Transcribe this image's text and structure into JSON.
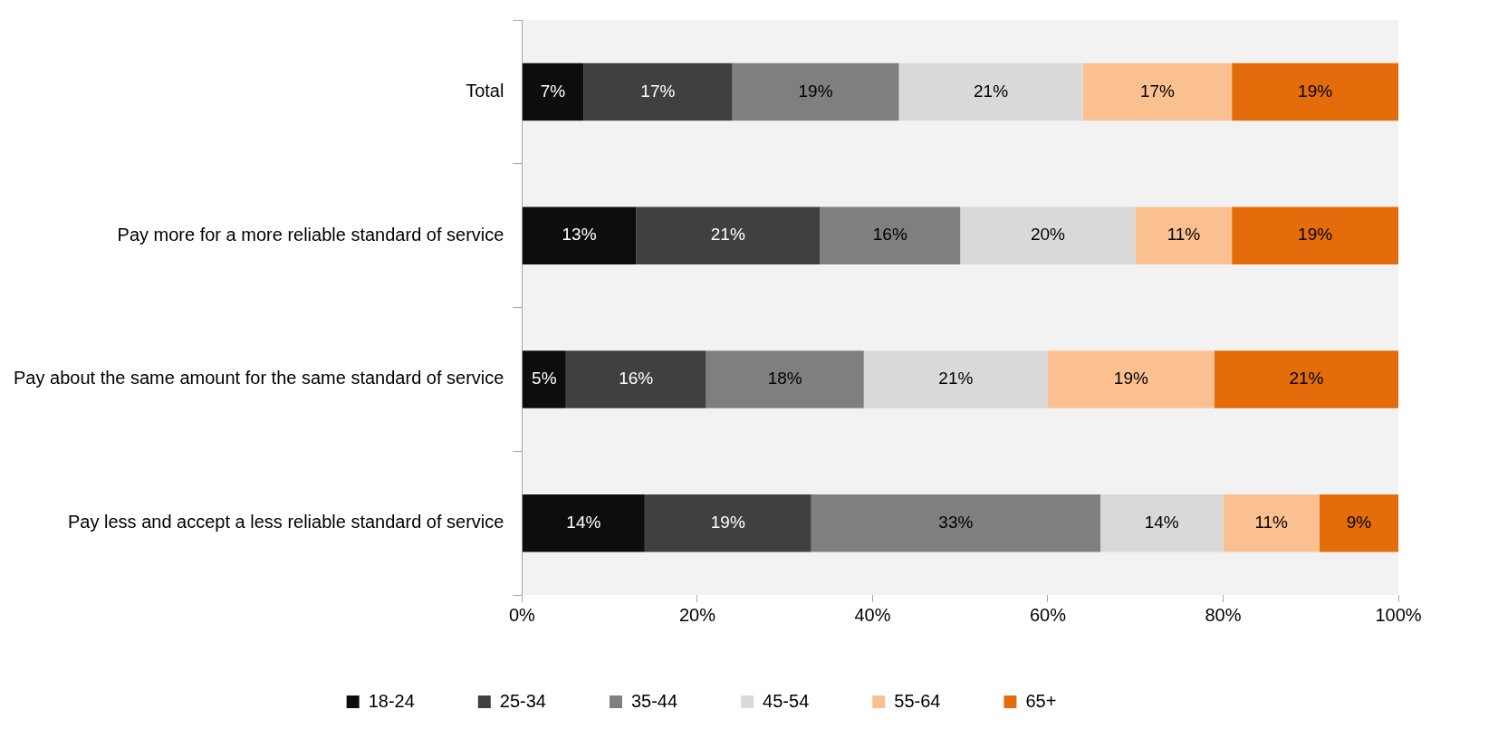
{
  "chart_data": {
    "type": "bar",
    "orientation": "horizontal",
    "stacked": true,
    "grid": false,
    "legend": "bottom",
    "categories": [
      "Total",
      "Pay more for a more reliable standard of service",
      "Pay about the same amount for the same standard of service",
      "Pay less and accept a less reliable standard of service"
    ],
    "xlim": [
      0,
      100
    ],
    "xticks": [
      {
        "value": 0,
        "label": "0%"
      },
      {
        "value": 20,
        "label": "20%"
      },
      {
        "value": 40,
        "label": "40%"
      },
      {
        "value": 60,
        "label": "60%"
      },
      {
        "value": 80,
        "label": "80%"
      },
      {
        "value": 100,
        "label": "100%"
      }
    ],
    "series": [
      {
        "name": "18-24",
        "color": "#0d0d0d",
        "values": [
          7,
          13,
          5,
          14
        ],
        "value_labels": [
          "7%",
          "13%",
          "5%",
          "14%"
        ]
      },
      {
        "name": "25-34",
        "color": "#404040",
        "values": [
          17,
          21,
          16,
          19
        ],
        "value_labels": [
          "17%",
          "21%",
          "16%",
          "19%"
        ]
      },
      {
        "name": "35-44",
        "color": "#7f7f7f",
        "values": [
          19,
          16,
          18,
          33
        ],
        "value_labels": [
          "19%",
          "16%",
          "18%",
          "33%"
        ]
      },
      {
        "name": "45-54",
        "color": "#d9d9d9",
        "values": [
          21,
          20,
          21,
          14
        ],
        "value_labels": [
          "21%",
          "20%",
          "21%",
          "14%"
        ]
      },
      {
        "name": "55-64",
        "color": "#fbc08f",
        "values": [
          17,
          11,
          19,
          11
        ],
        "value_labels": [
          "17%",
          "11%",
          "19%",
          "11%"
        ]
      },
      {
        "name": "65+",
        "color": "#e46c0a",
        "values": [
          19,
          19,
          21,
          9
        ],
        "value_labels": [
          "19%",
          "19%",
          "21%",
          "9%"
        ]
      }
    ]
  }
}
